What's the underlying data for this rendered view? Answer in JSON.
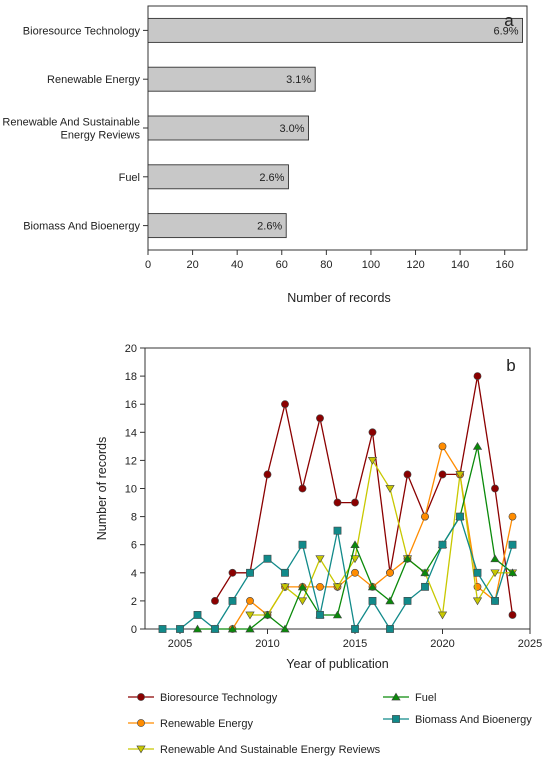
{
  "chart_data": [
    {
      "type": "bar",
      "orientation": "horizontal",
      "panel_label": "a",
      "categories": [
        "Bioresource Technology",
        "Renewable Energy",
        "Renewable And Sustainable Energy Reviews",
        "Fuel",
        "Biomass And Bioenergy"
      ],
      "category_lines": [
        [
          "Bioresource Technology"
        ],
        [
          "Renewable Energy"
        ],
        [
          "Renewable And Sustainable",
          "Energy Reviews"
        ],
        [
          "Fuel"
        ],
        [
          "Biomass And Bioenergy"
        ]
      ],
      "values": [
        168,
        75,
        72,
        63,
        62
      ],
      "data_labels": [
        "6.9%",
        "3.1%",
        "3.0%",
        "2.6%",
        "2.6%"
      ],
      "xlabel": "Number of records",
      "xlim": [
        0,
        170
      ],
      "xticks": [
        0,
        20,
        40,
        60,
        80,
        100,
        120,
        140,
        160
      ],
      "bar_color": "#c8c8c8",
      "grid": false
    },
    {
      "type": "line",
      "panel_label": "b",
      "xlabel": "Year of publication",
      "ylabel": "Number of records",
      "xlim": [
        2003,
        2025
      ],
      "ylim": [
        0,
        20
      ],
      "xticks": [
        2005,
        2010,
        2015,
        2020,
        2025
      ],
      "yticks": [
        0,
        2,
        4,
        6,
        8,
        10,
        12,
        14,
        16,
        18,
        20
      ],
      "legend_position": "bottom",
      "grid": false,
      "series": [
        {
          "name": "Bioresource Technology",
          "color": "#8b0000",
          "marker": "circle",
          "x": [
            2007,
            2008,
            2009,
            2010,
            2011,
            2012,
            2013,
            2014,
            2015,
            2016,
            2017,
            2018,
            2019,
            2020,
            2021,
            2022,
            2023,
            2024
          ],
          "y": [
            2,
            4,
            4,
            11,
            16,
            10,
            15,
            9,
            9,
            14,
            4,
            11,
            8,
            11,
            11,
            18,
            10,
            1
          ]
        },
        {
          "name": "Renewable Energy",
          "color": "#ff8c00",
          "marker": "circle",
          "x": [
            2008,
            2009,
            2010,
            2011,
            2012,
            2013,
            2014,
            2015,
            2016,
            2017,
            2018,
            2019,
            2020,
            2021,
            2022,
            2023,
            2024
          ],
          "y": [
            0,
            2,
            1,
            3,
            3,
            3,
            3,
            4,
            3,
            4,
            5,
            8,
            13,
            11,
            3,
            2,
            8
          ]
        },
        {
          "name": "Renewable And Sustainable Energy Reviews",
          "color": "#c8c800",
          "marker": "triangle-down",
          "x": [
            2009,
            2010,
            2011,
            2012,
            2013,
            2014,
            2015,
            2016,
            2017,
            2018,
            2019,
            2020,
            2021,
            2022,
            2023,
            2024
          ],
          "y": [
            1,
            1,
            3,
            2,
            5,
            3,
            5,
            12,
            10,
            5,
            4,
            1,
            11,
            2,
            4,
            4
          ]
        },
        {
          "name": "Fuel",
          "color": "#0a8a0a",
          "marker": "triangle-up",
          "x": [
            2006,
            2007,
            2008,
            2009,
            2010,
            2011,
            2012,
            2013,
            2014,
            2015,
            2016,
            2017,
            2018,
            2019,
            2020,
            2021,
            2022,
            2023,
            2024
          ],
          "y": [
            0,
            0,
            0,
            0,
            1,
            0,
            3,
            1,
            1,
            6,
            3,
            2,
            5,
            4,
            6,
            8,
            13,
            5,
            4
          ]
        },
        {
          "name": "Biomass And Bioenergy",
          "color": "#118a8a",
          "marker": "square",
          "x": [
            2004,
            2005,
            2006,
            2007,
            2008,
            2009,
            2010,
            2011,
            2012,
            2013,
            2014,
            2015,
            2016,
            2017,
            2018,
            2019,
            2020,
            2021,
            2022,
            2023,
            2024
          ],
          "y": [
            0,
            0,
            1,
            0,
            2,
            4,
            5,
            4,
            6,
            1,
            7,
            0,
            2,
            0,
            2,
            3,
            6,
            8,
            4,
            2,
            6
          ]
        }
      ]
    }
  ]
}
